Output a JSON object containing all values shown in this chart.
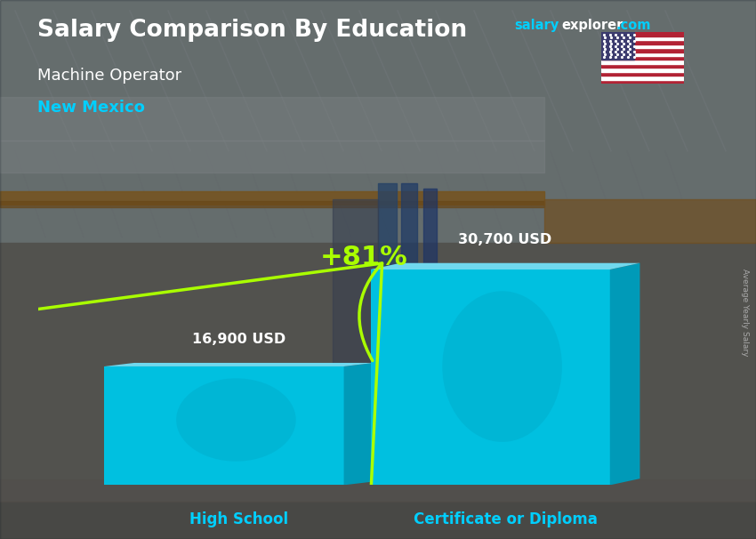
{
  "title": "Salary Comparison By Education",
  "subtitle_job": "Machine Operator",
  "subtitle_location": "New Mexico",
  "categories": [
    "High School",
    "Certificate or Diploma"
  ],
  "values": [
    16900,
    30700
  ],
  "value_labels": [
    "16,900 USD",
    "30,700 USD"
  ],
  "pct_change": "+81%",
  "bar_color_main": "#00C0E0",
  "bar_color_dark": "#0088AA",
  "bar_color_top": "#70D8EE",
  "bar_color_right": "#009AB8",
  "title_color": "#FFFFFF",
  "subtitle_job_color": "#FFFFFF",
  "subtitle_location_color": "#00CFFF",
  "category_label_color": "#00CFFF",
  "value_label_color": "#FFFFFF",
  "pct_color": "#AAFF00",
  "arrow_color": "#AAFF00",
  "brand_salary_color": "#00CFFF",
  "brand_rest_color": "#FFFFFF",
  "axis_label_color": "#AAAAAA",
  "ylabel": "Average Yearly Salary"
}
